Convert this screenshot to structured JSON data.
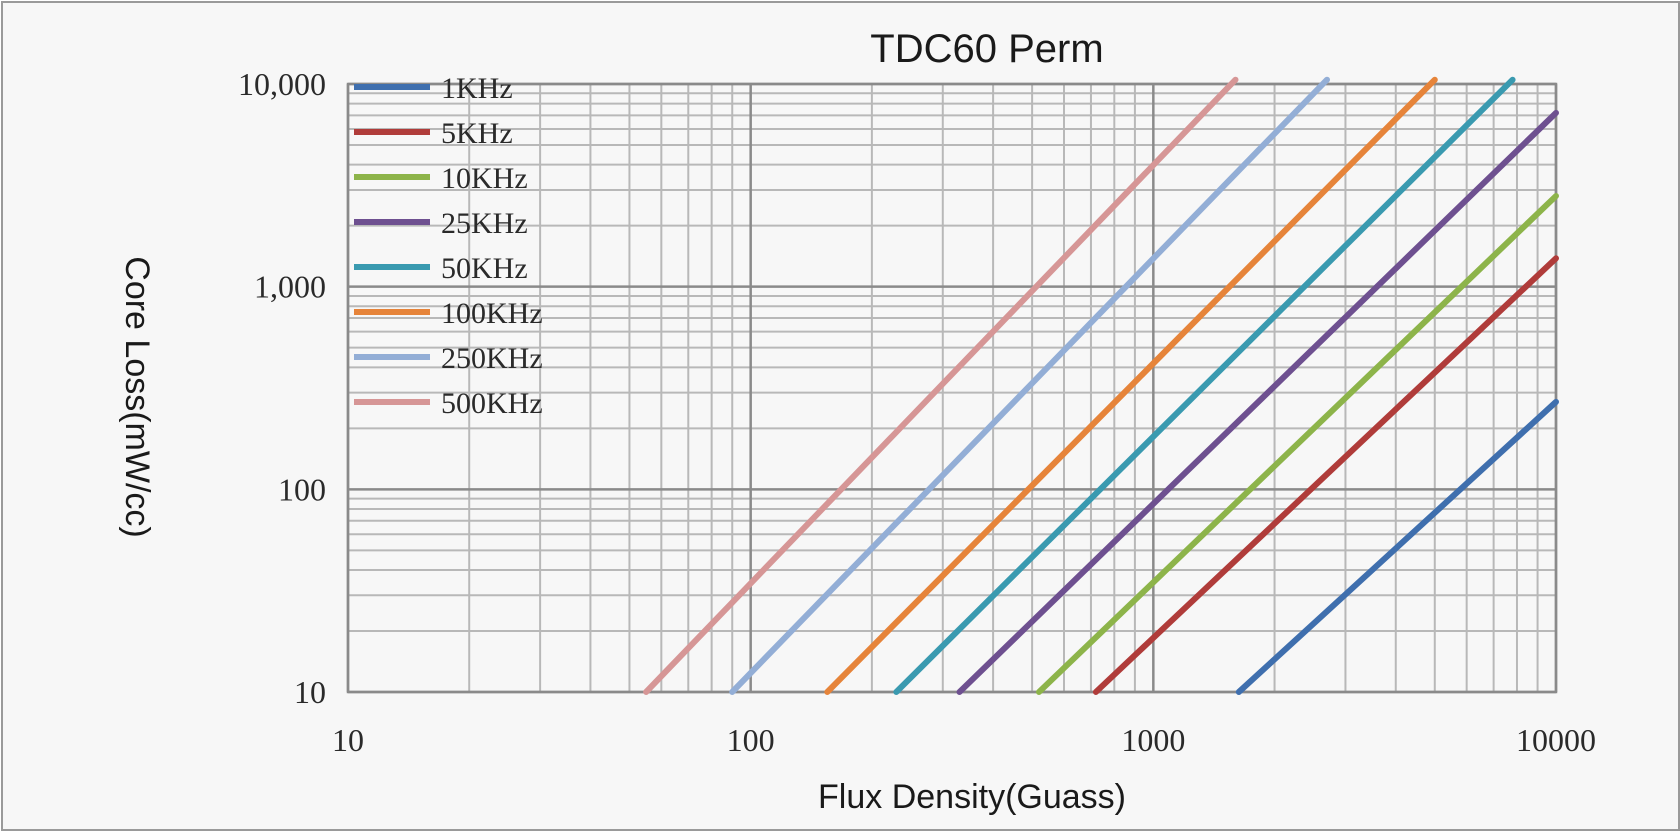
{
  "chart_data": {
    "type": "line",
    "title": "TDC60 Perm",
    "xlabel": "Flux Density(Guass)",
    "ylabel": "Core Loss(mW/cc)",
    "x_scale": "log",
    "y_scale": "log",
    "xlim": [
      10,
      10000
    ],
    "ylim": [
      10,
      10000
    ],
    "x_tick_labels": [
      "10",
      "100",
      "1000",
      "10000"
    ],
    "y_tick_labels": [
      "10,000",
      "1,000",
      "100",
      "10"
    ],
    "grid": true,
    "legend_position": "top-left",
    "series": [
      {
        "name": "1KHz",
        "color": "#3f6fae",
        "x": [
          1630,
          10000
        ],
        "y": [
          10,
          270
        ]
      },
      {
        "name": "5KHz",
        "color": "#b03c3a",
        "x": [
          720,
          10000
        ],
        "y": [
          10,
          1380
        ]
      },
      {
        "name": "10KHz",
        "color": "#8db44a",
        "x": [
          520,
          10000
        ],
        "y": [
          10,
          2800
        ]
      },
      {
        "name": "25KHz",
        "color": "#6e5090",
        "x": [
          330,
          10000
        ],
        "y": [
          10,
          7200
        ]
      },
      {
        "name": "50KHz",
        "color": "#3a9ab0",
        "x": [
          230,
          7800
        ],
        "y": [
          10,
          10500
        ]
      },
      {
        "name": "100KHz",
        "color": "#e6843a",
        "x": [
          155,
          5000
        ],
        "y": [
          10,
          10500
        ]
      },
      {
        "name": "250KHz",
        "color": "#93aed6",
        "x": [
          90,
          2700
        ],
        "y": [
          10,
          10500
        ]
      },
      {
        "name": "500KHz",
        "color": "#d69696",
        "x": [
          55,
          1600
        ],
        "y": [
          10,
          10500
        ]
      }
    ]
  }
}
